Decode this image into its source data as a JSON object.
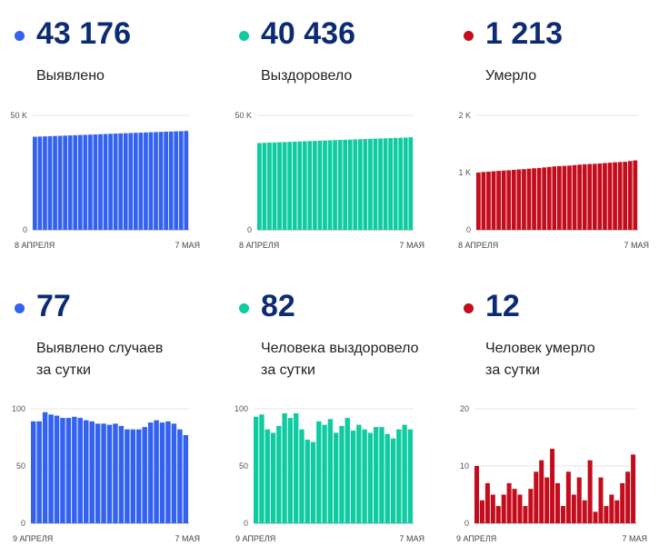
{
  "colors": {
    "blue": "#3361f0",
    "green": "#0fcba0",
    "red": "#c40d1c",
    "number": "#0d2a75"
  },
  "panels": [
    {
      "value": "43 176",
      "label_lines": [
        "Выявлено"
      ],
      "dot_color": "#3361f0"
    },
    {
      "value": "40 436",
      "label_lines": [
        "Выздоровело"
      ],
      "dot_color": "#0fcba0"
    },
    {
      "value": "1 213",
      "label_lines": [
        "Умерло"
      ],
      "dot_color": "#c40d1c"
    },
    {
      "value": "77",
      "label_lines": [
        "Выявлено случаев",
        "за сутки"
      ],
      "dot_color": "#3361f0"
    },
    {
      "value": "82",
      "label_lines": [
        "Человека выздоровело",
        "за сутки"
      ],
      "dot_color": "#0fcba0"
    },
    {
      "value": "12",
      "label_lines": [
        "Человек умерло",
        "за сутки"
      ],
      "dot_color": "#c40d1c"
    }
  ],
  "chart_data": [
    {
      "type": "bar",
      "color": "#3361f0",
      "ylim": [
        0,
        50000
      ],
      "yticks": [
        0,
        50000
      ],
      "ytick_labels": [
        "0",
        "50 K"
      ],
      "x_labels": [
        "8 АПРЕЛЯ",
        "7 МАЯ"
      ],
      "values": [
        40650,
        40740,
        40820,
        40900,
        40980,
        41060,
        41150,
        41240,
        41330,
        41420,
        41500,
        41590,
        41680,
        41770,
        41860,
        41950,
        42040,
        42130,
        42210,
        42300,
        42380,
        42460,
        42540,
        42620,
        42700,
        42790,
        42870,
        42950,
        43030,
        43100,
        43176
      ]
    },
    {
      "type": "bar",
      "color": "#0fcba0",
      "ylim": [
        0,
        50000
      ],
      "yticks": [
        0,
        50000
      ],
      "ytick_labels": [
        "0",
        "50 K"
      ],
      "x_labels": [
        "8 АПРЕЛЯ",
        "7 МАЯ"
      ],
      "values": [
        37900,
        37990,
        38080,
        38170,
        38260,
        38340,
        38420,
        38510,
        38600,
        38680,
        38760,
        38850,
        38940,
        39020,
        39100,
        39180,
        39260,
        39340,
        39420,
        39500,
        39580,
        39660,
        39740,
        39820,
        39900,
        39980,
        40060,
        40140,
        40220,
        40300,
        40436
      ]
    },
    {
      "type": "bar",
      "color": "#c40d1c",
      "ylim": [
        0,
        2000
      ],
      "yticks": [
        0,
        1000,
        2000
      ],
      "ytick_labels": [
        "0",
        "1 K",
        "2 K"
      ],
      "x_labels": [
        "8 АПРЕЛЯ",
        "7 МАЯ"
      ],
      "values": [
        1000,
        1010,
        1016,
        1023,
        1030,
        1036,
        1041,
        1048,
        1055,
        1060,
        1068,
        1075,
        1081,
        1090,
        1098,
        1108,
        1113,
        1117,
        1122,
        1131,
        1139,
        1145,
        1150,
        1153,
        1159,
        1167,
        1173,
        1180,
        1184,
        1189,
        1201,
        1213
      ]
    },
    {
      "type": "bar",
      "color": "#3361f0",
      "ylim": [
        0,
        100
      ],
      "yticks": [
        0,
        50,
        100
      ],
      "ytick_labels": [
        "0",
        "50",
        "100"
      ],
      "x_labels": [
        "9 АПРЕЛЯ",
        "7 МАЯ"
      ],
      "values": [
        89,
        89,
        97,
        95,
        94,
        92,
        92,
        93,
        92,
        90,
        89,
        87,
        87,
        86,
        87,
        85,
        82,
        82,
        82,
        84,
        88,
        90,
        88,
        89,
        87,
        82,
        77
      ]
    },
    {
      "type": "bar",
      "color": "#0fcba0",
      "ylim": [
        0,
        100
      ],
      "yticks": [
        0,
        50,
        100
      ],
      "ytick_labels": [
        "0",
        "50",
        "100"
      ],
      "x_labels": [
        "9 АПРЕЛЯ",
        "7 МАЯ"
      ],
      "values": [
        93,
        95,
        82,
        79,
        85,
        96,
        92,
        96,
        82,
        73,
        71,
        89,
        86,
        91,
        79,
        85,
        92,
        81,
        86,
        82,
        79,
        84,
        84,
        78,
        74,
        82,
        86,
        82
      ]
    },
    {
      "type": "bar",
      "color": "#c40d1c",
      "ylim": [
        0,
        20
      ],
      "yticks": [
        0,
        10,
        20
      ],
      "ytick_labels": [
        "0",
        "10",
        "20"
      ],
      "x_labels": [
        "9 АПРЕЛЯ",
        "7 МАЯ"
      ],
      "values": [
        10,
        4,
        7,
        5,
        3,
        5,
        7,
        6,
        5,
        3,
        6,
        9,
        11,
        8,
        13,
        7,
        3,
        9,
        5,
        8,
        4,
        11,
        2,
        8,
        3,
        5,
        4,
        7,
        9,
        12
      ]
    }
  ]
}
